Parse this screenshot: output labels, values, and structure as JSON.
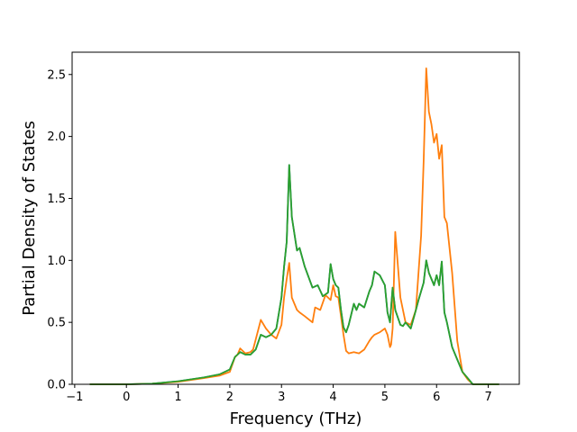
{
  "chart_data": {
    "type": "line",
    "title": "",
    "xlabel": "Frequency (THz)",
    "ylabel": "Partial Density of States",
    "xlim": [
      -1.05,
      7.6
    ],
    "ylim": [
      0,
      2.68
    ],
    "xticks": [
      -1,
      0,
      1,
      2,
      3,
      4,
      5,
      6,
      7
    ],
    "yticks": [
      0.0,
      0.5,
      1.0,
      1.5,
      2.0,
      2.5
    ],
    "xtick_labels": [
      "−1",
      "0",
      "1",
      "2",
      "3",
      "4",
      "5",
      "6",
      "7"
    ],
    "ytick_labels": [
      "0.0",
      "0.5",
      "1.0",
      "1.5",
      "2.0",
      "2.5"
    ],
    "grid": false,
    "legend": "none",
    "series": [
      {
        "color": "#1f77b4",
        "x": [
          -0.7,
          0,
          0.5,
          1.0,
          1.5,
          1.8,
          2.0,
          2.1,
          2.15,
          2.2,
          2.3,
          2.4,
          2.45,
          2.5,
          2.6,
          2.7,
          2.8,
          2.9,
          3.0,
          3.05,
          3.1,
          3.15,
          3.2,
          3.3,
          3.35,
          3.45,
          3.6,
          3.7,
          3.8,
          3.9,
          3.95,
          4.0,
          4.05,
          4.1,
          4.15,
          4.2,
          4.25,
          4.3,
          4.4,
          4.45,
          4.5,
          4.6,
          4.7,
          4.75,
          4.8,
          4.9,
          5.0,
          5.05,
          5.1,
          5.15,
          5.2,
          5.3,
          5.35,
          5.4,
          5.5,
          5.6,
          5.65,
          5.75,
          5.8,
          5.85,
          5.95,
          6.0,
          6.05,
          6.1,
          6.15,
          6.2,
          6.3,
          6.4,
          6.5,
          6.6,
          6.7,
          7.2
        ],
        "y": [
          0,
          0,
          0.005,
          0.025,
          0.055,
          0.08,
          0.12,
          0.22,
          0.24,
          0.26,
          0.24,
          0.24,
          0.26,
          0.28,
          0.4,
          0.38,
          0.4,
          0.45,
          0.7,
          0.95,
          1.15,
          1.77,
          1.35,
          1.08,
          1.1,
          0.95,
          0.78,
          0.8,
          0.71,
          0.74,
          0.97,
          0.85,
          0.8,
          0.78,
          0.6,
          0.46,
          0.42,
          0.48,
          0.65,
          0.6,
          0.65,
          0.62,
          0.75,
          0.8,
          0.91,
          0.88,
          0.8,
          0.58,
          0.5,
          0.78,
          0.6,
          0.48,
          0.47,
          0.5,
          0.45,
          0.6,
          0.68,
          0.82,
          1.0,
          0.9,
          0.8,
          0.88,
          0.8,
          0.99,
          0.58,
          0.5,
          0.3,
          0.2,
          0.1,
          0.05,
          0,
          0
        ]
      },
      {
        "color": "#ff7f0e",
        "x": [
          -0.7,
          0,
          0.5,
          1.0,
          1.5,
          1.8,
          2.0,
          2.1,
          2.15,
          2.2,
          2.3,
          2.4,
          2.45,
          2.5,
          2.6,
          2.7,
          2.8,
          2.9,
          3.0,
          3.05,
          3.1,
          3.15,
          3.2,
          3.3,
          3.35,
          3.45,
          3.6,
          3.65,
          3.75,
          3.85,
          3.95,
          4.0,
          4.05,
          4.1,
          4.15,
          4.2,
          4.25,
          4.3,
          4.4,
          4.5,
          4.6,
          4.7,
          4.75,
          4.8,
          4.9,
          5.0,
          5.05,
          5.1,
          5.12,
          5.15,
          5.2,
          5.3,
          5.4,
          5.5,
          5.6,
          5.7,
          5.75,
          5.8,
          5.85,
          5.9,
          5.95,
          6.0,
          6.05,
          6.1,
          6.15,
          6.2,
          6.3,
          6.4,
          6.5,
          6.6,
          6.7,
          7.2
        ],
        "y": [
          0,
          0,
          0.005,
          0.02,
          0.05,
          0.07,
          0.1,
          0.22,
          0.24,
          0.29,
          0.25,
          0.26,
          0.28,
          0.36,
          0.52,
          0.45,
          0.4,
          0.37,
          0.48,
          0.7,
          0.85,
          0.98,
          0.7,
          0.6,
          0.58,
          0.55,
          0.5,
          0.62,
          0.6,
          0.72,
          0.68,
          0.8,
          0.71,
          0.7,
          0.55,
          0.4,
          0.27,
          0.25,
          0.26,
          0.25,
          0.28,
          0.35,
          0.38,
          0.4,
          0.42,
          0.45,
          0.4,
          0.3,
          0.32,
          0.45,
          1.23,
          0.7,
          0.5,
          0.48,
          0.6,
          1.2,
          1.8,
          2.55,
          2.2,
          2.1,
          1.95,
          2.02,
          1.82,
          1.93,
          1.35,
          1.3,
          0.9,
          0.35,
          0.1,
          0.04,
          0,
          0
        ]
      },
      {
        "color": "#2ca02c",
        "x": [
          -0.7,
          0,
          0.5,
          1.0,
          1.5,
          1.8,
          2.0,
          2.1,
          2.15,
          2.2,
          2.3,
          2.4,
          2.45,
          2.5,
          2.6,
          2.7,
          2.8,
          2.9,
          3.0,
          3.05,
          3.1,
          3.15,
          3.2,
          3.3,
          3.35,
          3.45,
          3.6,
          3.7,
          3.8,
          3.9,
          3.95,
          4.0,
          4.05,
          4.1,
          4.15,
          4.2,
          4.25,
          4.3,
          4.4,
          4.45,
          4.5,
          4.6,
          4.7,
          4.75,
          4.8,
          4.9,
          5.0,
          5.05,
          5.1,
          5.15,
          5.2,
          5.3,
          5.35,
          5.4,
          5.5,
          5.6,
          5.65,
          5.75,
          5.8,
          5.85,
          5.95,
          6.0,
          6.05,
          6.1,
          6.15,
          6.2,
          6.3,
          6.4,
          6.5,
          6.6,
          6.7,
          7.2
        ],
        "y": [
          0,
          0,
          0.005,
          0.025,
          0.055,
          0.08,
          0.12,
          0.22,
          0.24,
          0.26,
          0.24,
          0.24,
          0.26,
          0.28,
          0.4,
          0.38,
          0.4,
          0.45,
          0.7,
          0.95,
          1.15,
          1.77,
          1.35,
          1.08,
          1.1,
          0.95,
          0.78,
          0.8,
          0.71,
          0.74,
          0.97,
          0.85,
          0.8,
          0.78,
          0.6,
          0.46,
          0.42,
          0.48,
          0.65,
          0.6,
          0.65,
          0.62,
          0.75,
          0.8,
          0.91,
          0.88,
          0.8,
          0.58,
          0.5,
          0.78,
          0.6,
          0.48,
          0.47,
          0.5,
          0.45,
          0.6,
          0.68,
          0.82,
          1.0,
          0.9,
          0.8,
          0.88,
          0.8,
          0.99,
          0.58,
          0.5,
          0.3,
          0.2,
          0.1,
          0.05,
          0,
          0
        ]
      }
    ]
  }
}
